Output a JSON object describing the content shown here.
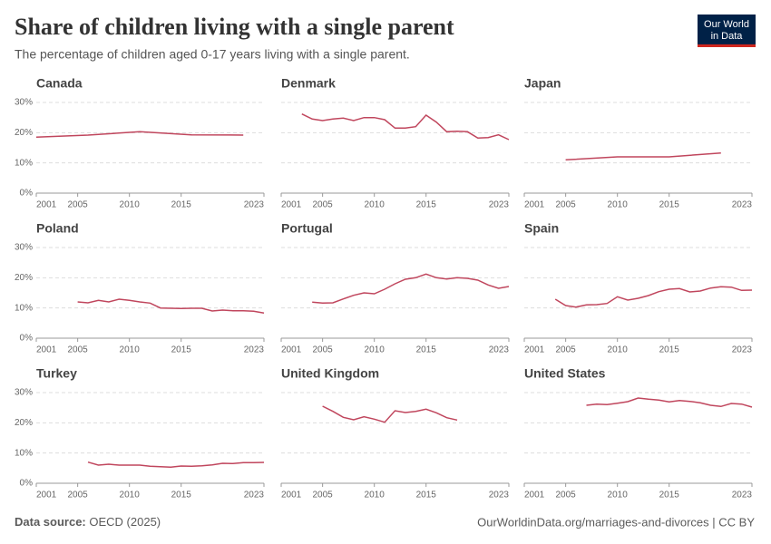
{
  "title": "Share of children living with a single parent",
  "subtitle": "The percentage of children aged 0-17 years living with a single parent.",
  "logo": [
    "Our World",
    "in Data"
  ],
  "source_label": "Data source:",
  "source": "OECD (2025)",
  "url": "OurWorldinData.org/marriages-and-divorces | CC BY",
  "chart_data": {
    "type": "line",
    "color": "#c0465d",
    "grid": true,
    "xlim": [
      2001,
      2023
    ],
    "xticks": [
      2001,
      2005,
      2010,
      2015,
      2023
    ],
    "ylim": [
      0,
      30
    ],
    "yticks": [
      {
        "value": 0,
        "label": "0%"
      },
      {
        "value": 10,
        "label": "10%"
      },
      {
        "value": 20,
        "label": "20%"
      },
      {
        "value": 30,
        "label": "30%"
      }
    ],
    "panels": [
      {
        "title": "Canada",
        "x": [
          2001,
          2006,
          2011,
          2016,
          2021
        ],
        "values": [
          18.5,
          19.2,
          20.3,
          19.3,
          19.2
        ]
      },
      {
        "title": "Denmark",
        "x": [
          2003,
          2004,
          2005,
          2006,
          2007,
          2008,
          2009,
          2010,
          2011,
          2012,
          2013,
          2014,
          2015,
          2016,
          2017,
          2018,
          2019,
          2020,
          2021,
          2022,
          2023
        ],
        "values": [
          26.2,
          24.5,
          24.0,
          24.5,
          24.8,
          24.0,
          25.0,
          25.0,
          24.3,
          21.5,
          21.5,
          22.0,
          25.8,
          23.5,
          20.3,
          20.5,
          20.3,
          18.2,
          18.4,
          19.3,
          17.7
        ]
      },
      {
        "title": "Japan",
        "x": [
          2005,
          2010,
          2015,
          2020
        ],
        "values": [
          11.0,
          12.0,
          12.0,
          13.3
        ]
      },
      {
        "title": "Poland",
        "x": [
          2005,
          2006,
          2007,
          2008,
          2009,
          2010,
          2011,
          2012,
          2013,
          2014,
          2015,
          2016,
          2017,
          2018,
          2019,
          2020,
          2021,
          2022,
          2023
        ],
        "values": [
          12.0,
          11.7,
          12.5,
          12.0,
          12.9,
          12.5,
          12.0,
          11.6,
          10.0,
          9.9,
          9.8,
          9.9,
          9.9,
          9.0,
          9.3,
          9.1,
          9.1,
          8.9,
          8.3
        ]
      },
      {
        "title": "Portugal",
        "x": [
          2004,
          2005,
          2006,
          2007,
          2008,
          2009,
          2010,
          2011,
          2012,
          2013,
          2014,
          2015,
          2016,
          2017,
          2018,
          2019,
          2020,
          2021,
          2022,
          2023
        ],
        "values": [
          11.9,
          11.6,
          11.7,
          13.0,
          14.2,
          15.0,
          14.7,
          16.2,
          18.0,
          19.5,
          20.0,
          21.2,
          20.0,
          19.6,
          20.0,
          19.8,
          19.2,
          17.6,
          16.5,
          17.1
        ]
      },
      {
        "title": "Spain",
        "x": [
          2004,
          2005,
          2006,
          2007,
          2008,
          2009,
          2010,
          2011,
          2012,
          2013,
          2014,
          2015,
          2016,
          2017,
          2018,
          2019,
          2020,
          2021,
          2022,
          2023
        ],
        "values": [
          12.9,
          10.8,
          10.3,
          11.0,
          11.1,
          11.5,
          13.7,
          12.6,
          13.2,
          14.1,
          15.4,
          16.2,
          16.4,
          15.3,
          15.6,
          16.6,
          17.0,
          16.9,
          15.8,
          15.9
        ]
      },
      {
        "title": "Turkey",
        "x": [
          2006,
          2007,
          2008,
          2009,
          2010,
          2011,
          2012,
          2013,
          2014,
          2015,
          2016,
          2017,
          2018,
          2019,
          2020,
          2021,
          2022,
          2023
        ],
        "values": [
          7.0,
          6.0,
          6.3,
          6.0,
          6.0,
          6.0,
          5.6,
          5.5,
          5.3,
          5.7,
          5.6,
          5.8,
          6.1,
          6.6,
          6.5,
          6.8,
          6.8,
          6.9
        ]
      },
      {
        "title": "United Kingdom",
        "x": [
          2005,
          2006,
          2007,
          2008,
          2009,
          2010,
          2011,
          2012,
          2013,
          2014,
          2015,
          2016,
          2017,
          2018
        ],
        "values": [
          25.5,
          23.8,
          21.8,
          21.0,
          22.0,
          21.2,
          20.2,
          24.0,
          23.4,
          23.8,
          24.5,
          23.3,
          21.7,
          20.9
        ]
      },
      {
        "title": "United States",
        "x": [
          2007,
          2008,
          2009,
          2010,
          2011,
          2012,
          2013,
          2014,
          2015,
          2016,
          2017,
          2018,
          2019,
          2020,
          2021,
          2022,
          2023
        ],
        "values": [
          25.8,
          26.2,
          26.0,
          26.5,
          27.0,
          28.2,
          27.8,
          27.5,
          26.9,
          27.4,
          27.1,
          26.6,
          25.8,
          25.4,
          26.4,
          26.2,
          25.2
        ]
      }
    ]
  }
}
